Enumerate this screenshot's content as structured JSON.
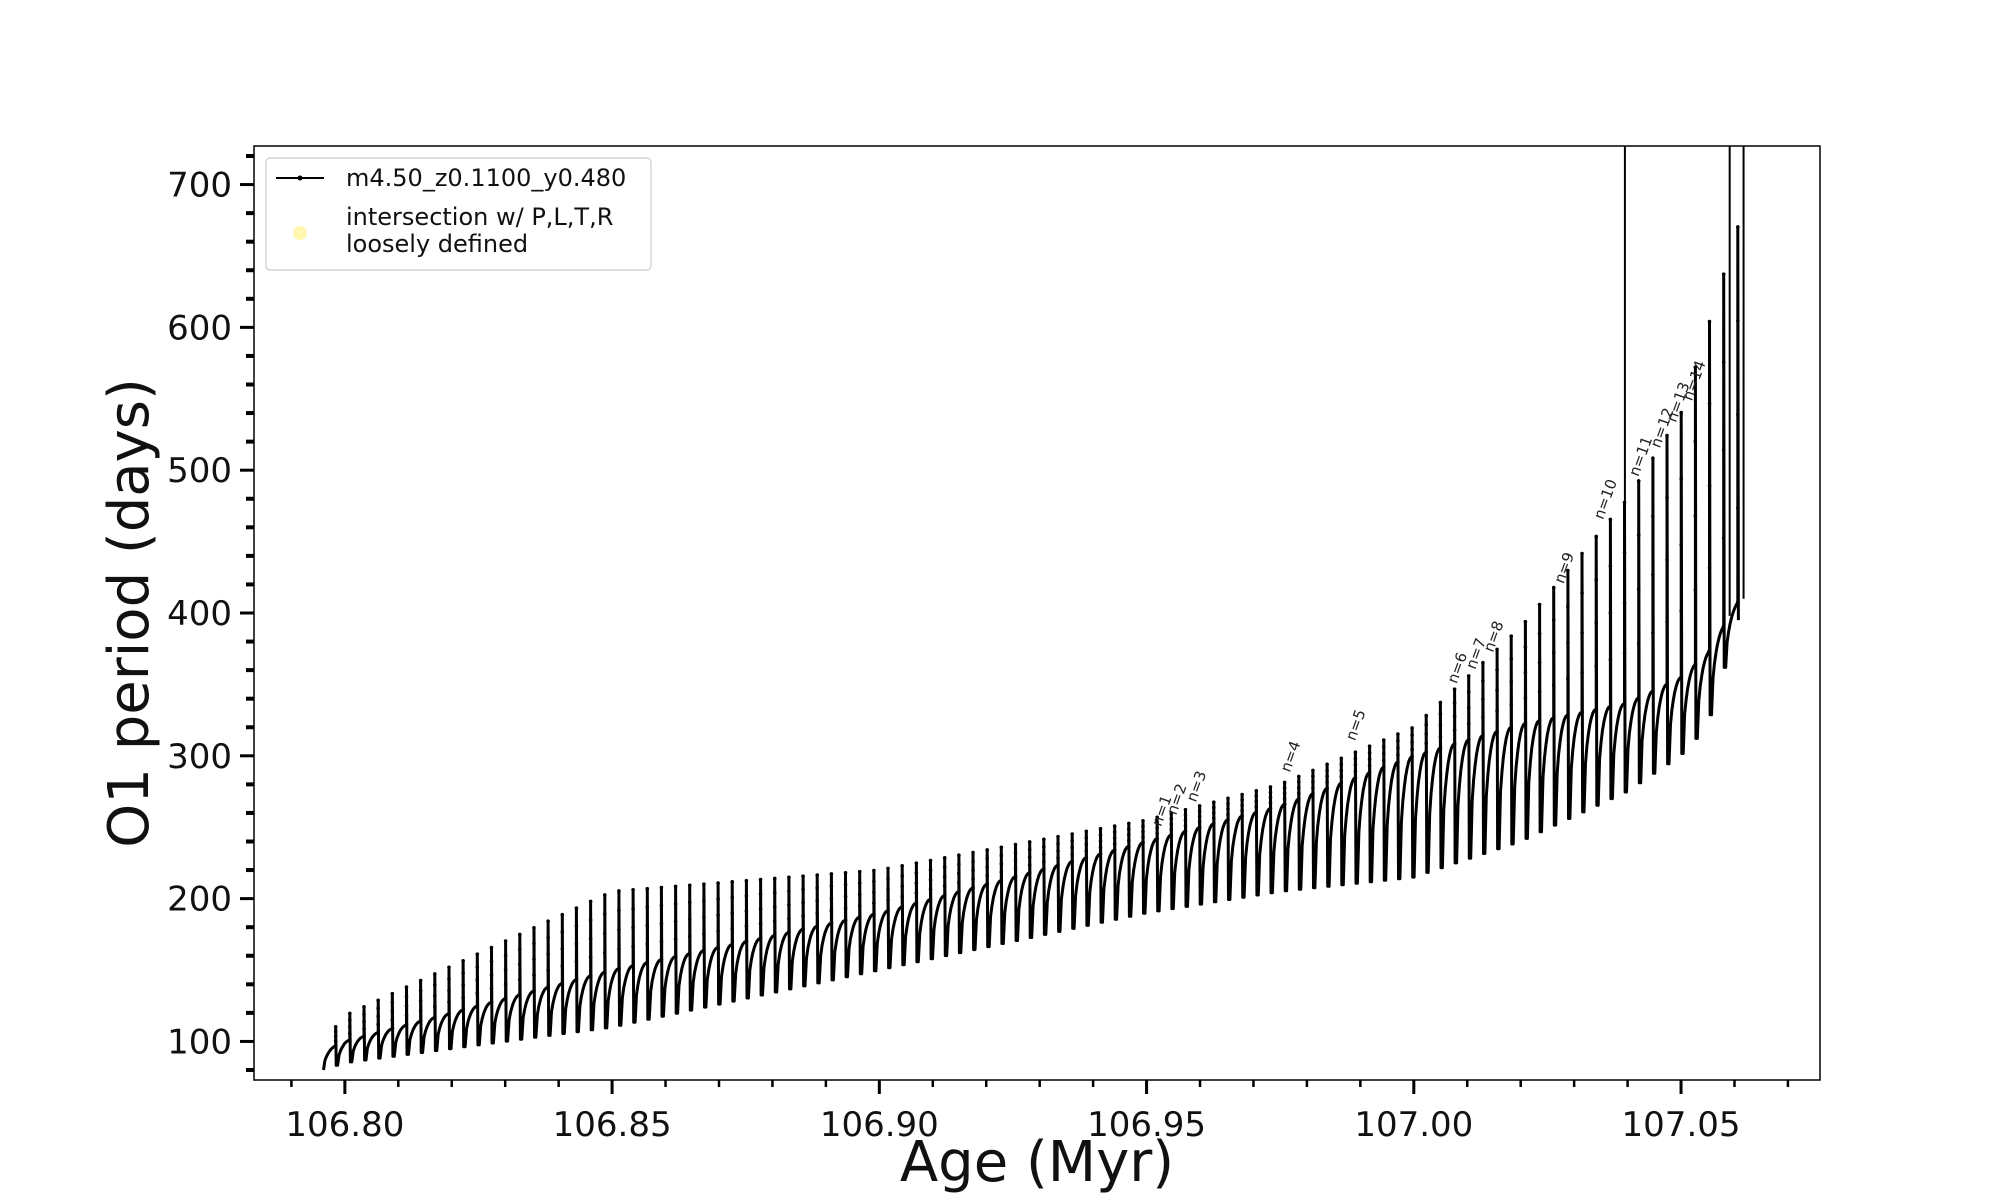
{
  "chart_data": {
    "type": "line",
    "title": "",
    "xlabel": "Age (Myr)",
    "ylabel": "O1 period (days)",
    "xlim": [
      106.783,
      107.076
    ],
    "ylim": [
      73,
      727
    ],
    "x_ticks": [
      106.8,
      106.85,
      106.9,
      106.95,
      107.0,
      107.05
    ],
    "x_tick_labels": [
      "106.80",
      "106.85",
      "106.90",
      "106.95",
      "107.00",
      "107.05"
    ],
    "y_ticks": [
      100,
      200,
      300,
      400,
      500,
      600,
      700
    ],
    "y_tick_labels": [
      "100",
      "200",
      "300",
      "400",
      "500",
      "600",
      "700"
    ],
    "grid": false,
    "legend": {
      "location": "upper-left",
      "entries": [
        {
          "label": "m4.50_z0.1100_y0.480",
          "marker": "line-with-dots",
          "color": "#000000"
        },
        {
          "label": "intersection w/ P,L,T,R\nloosely defined",
          "marker": "circle",
          "color": "#fff7b0"
        }
      ]
    },
    "series": [
      {
        "name": "m4.50_z0.1100_y0.480",
        "color": "#000000",
        "x_range": [
          106.796,
          107.061
        ],
        "pulse_count": 100,
        "envelope": {
          "age": [
            106.796,
            106.8,
            106.85,
            106.9,
            106.95,
            106.975,
            107.0,
            107.02,
            107.04,
            107.05,
            107.055,
            107.061
          ],
          "base_period": [
            93,
            100,
            150,
            190,
            240,
            265,
            300,
            322,
            337,
            355,
            372,
            410
          ],
          "peak_period": [
            100,
            118,
            205,
            220,
            255,
            280,
            320,
            390,
            480,
            540,
            600,
            675
          ],
          "dip_period": [
            80,
            85,
            110,
            150,
            190,
            205,
            215,
            240,
            275,
            300,
            320,
            395
          ]
        }
      }
    ],
    "annotations": [
      {
        "text": "n=1",
        "x": 106.9527,
        "y": 250
      },
      {
        "text": "n=2",
        "x": 106.9555,
        "y": 258
      },
      {
        "text": "n=3",
        "x": 106.9592,
        "y": 267
      },
      {
        "text": "n=4",
        "x": 106.9768,
        "y": 288
      },
      {
        "text": "n=5",
        "x": 106.989,
        "y": 310
      },
      {
        "text": "n=6",
        "x": 107.008,
        "y": 350
      },
      {
        "text": "n=7",
        "x": 107.0115,
        "y": 360
      },
      {
        "text": "n=8",
        "x": 107.0148,
        "y": 372
      },
      {
        "text": "n=9",
        "x": 107.028,
        "y": 420
      },
      {
        "text": "n=10",
        "x": 107.0354,
        "y": 465
      },
      {
        "text": "n=11",
        "x": 107.042,
        "y": 495
      },
      {
        "text": "n=12",
        "x": 107.046,
        "y": 515
      },
      {
        "text": "n=13",
        "x": 107.049,
        "y": 533
      },
      {
        "text": "n=14",
        "x": 107.052,
        "y": 548
      }
    ]
  }
}
